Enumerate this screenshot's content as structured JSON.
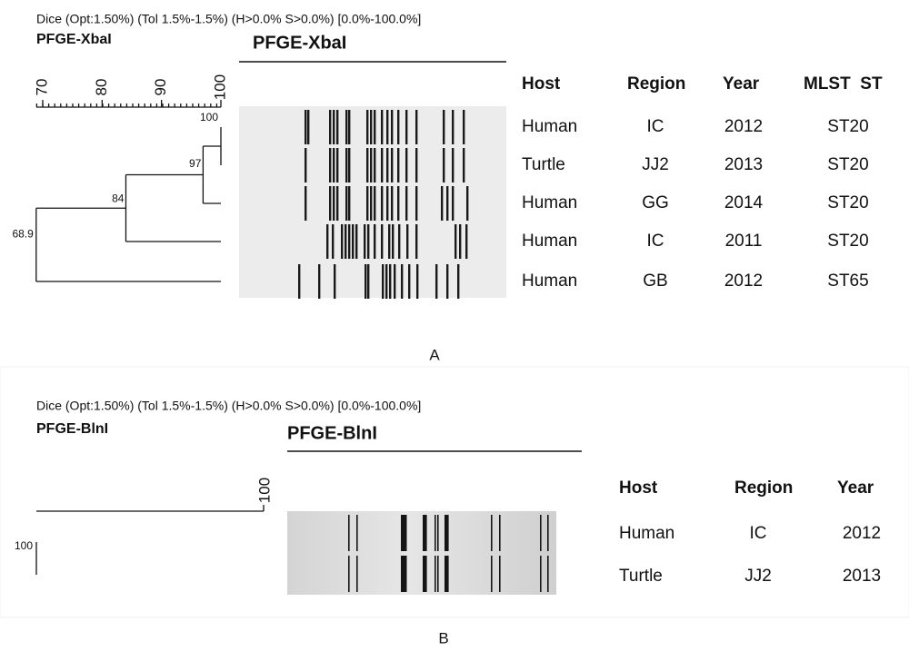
{
  "panel_a": {
    "label": "A",
    "dice": "Dice (Opt:1.50%) (Tol 1.5%-1.5%) (H>0.0% S>0.0%) [0.0%-100.0%]",
    "title": "PFGE-XbaI",
    "gel_title": "PFGE-XbaI",
    "scale_ticks": [
      70,
      80,
      90,
      100
    ],
    "nodes": [
      100,
      97,
      84,
      68.9
    ],
    "table": {
      "header": [
        "Host",
        "Region",
        "Year",
        "MLST  ST"
      ],
      "rows": [
        [
          "Human",
          "IC",
          "2012",
          "ST20"
        ],
        [
          "Turtle",
          "JJ2",
          "2013",
          "ST20"
        ],
        [
          "Human",
          "GG",
          "2014",
          "ST20"
        ],
        [
          "Human",
          "IC",
          "2011",
          "ST20"
        ],
        [
          "Human",
          "GB",
          "2012",
          "ST65"
        ]
      ]
    }
  },
  "panel_b": {
    "label": "B",
    "dice": "Dice (Opt:1.50%) (Tol 1.5%-1.5%) (H>0.0% S>0.0%) [0.0%-100.0%]",
    "title": "PFGE-BlnI",
    "gel_title": "PFGE-BlnI",
    "scale_ticks": [
      100
    ],
    "nodes": [
      100
    ],
    "table": {
      "header": [
        "Host",
        "Region",
        "Year"
      ],
      "rows": [
        [
          "Human",
          "IC",
          "2012"
        ],
        [
          "Turtle",
          "JJ2",
          "2013"
        ]
      ]
    }
  }
}
